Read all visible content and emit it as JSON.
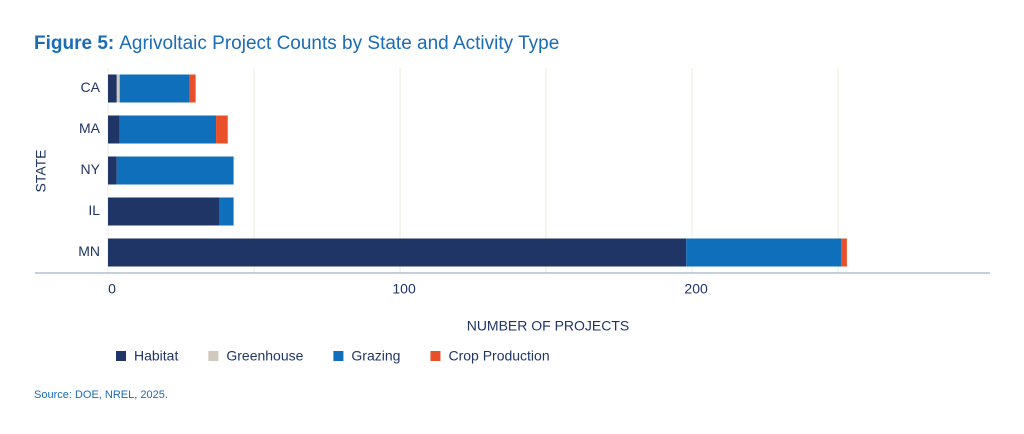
{
  "chart_data": {
    "type": "stacked_bar_horizontal",
    "figure_label": "Figure 5:",
    "title": "Agrivoltaic Project Counts by State and Activity Type",
    "x_label": "NUMBER OF PROJECTS",
    "y_label": "STATE",
    "source": "Source: DOE, NREL, 2025.",
    "categories": [
      "CA",
      "MA",
      "NY",
      "IL",
      "MN"
    ],
    "series": [
      {
        "name": "Habitat",
        "color": "#1f3566",
        "values": [
          3,
          4,
          3,
          38,
          198
        ]
      },
      {
        "name": "Greenhouse",
        "color": "#cfc9bd",
        "values": [
          1,
          0,
          0,
          0,
          0
        ]
      },
      {
        "name": "Grazing",
        "color": "#0f6fba",
        "values": [
          24,
          33,
          40,
          5,
          53
        ]
      },
      {
        "name": "Crop Production",
        "color": "#e8502a",
        "values": [
          2,
          4,
          0,
          0,
          2
        ]
      }
    ],
    "xlim": [
      -25,
      302
    ],
    "xticks": [
      0,
      100,
      200
    ],
    "minor_grid_xticks": [
      50,
      150,
      250
    ],
    "grid": true
  }
}
